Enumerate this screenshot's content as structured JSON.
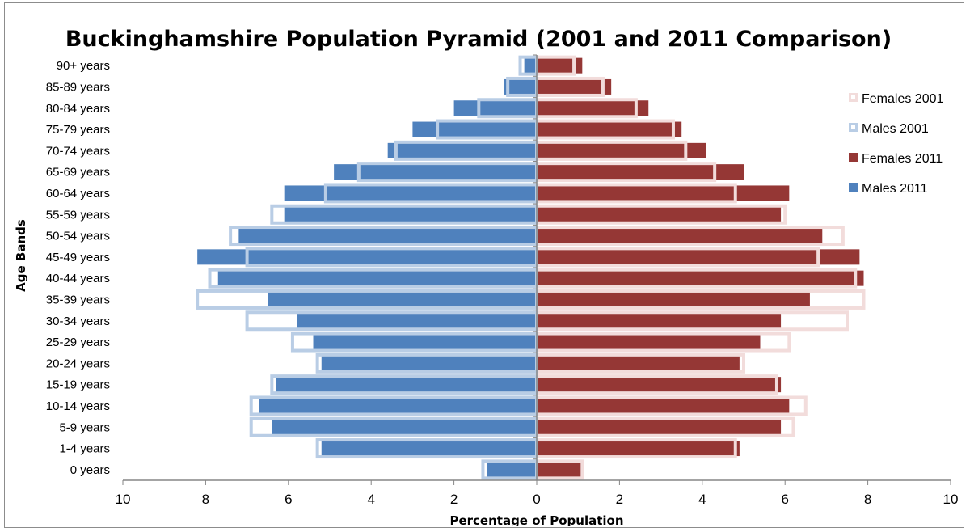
{
  "chart_data": {
    "type": "bar",
    "orientation": "horizontal-pyramid",
    "title": "Buckinghamshire Population Pyramid (2001 and 2011 Comparison)",
    "xlabel": "Percentage of Population",
    "ylabel": "Age Bands",
    "xlim": [
      -10,
      10
    ],
    "x_ticks": [
      -10,
      -8,
      -6,
      -4,
      -2,
      0,
      2,
      4,
      6,
      8,
      10
    ],
    "x_tick_labels": [
      "10",
      "8",
      "6",
      "4",
      "2",
      "0",
      "2",
      "4",
      "6",
      "8",
      "10"
    ],
    "categories": [
      "90+ years",
      "85-89 years",
      "80-84 years",
      "75-79 years",
      "70-74 years",
      "65-69 years",
      "60-64 years",
      "55-59 years",
      "50-54 years",
      "45-49 years",
      "40-44 years",
      "35-39 years",
      "30-34 years",
      "25-29 years",
      "20-24 years",
      "15-19 years",
      "10-14 years",
      "5-9 years",
      "1-4 years",
      "0 years"
    ],
    "grid": false,
    "legend_position": "right",
    "series": [
      {
        "name": "Females 2001",
        "side": "right",
        "style": "outline",
        "color": "#f2dcdb",
        "values": [
          0.9,
          1.6,
          2.4,
          3.3,
          3.6,
          4.3,
          4.8,
          6.0,
          7.4,
          6.8,
          7.7,
          7.9,
          7.5,
          6.1,
          5.0,
          5.8,
          6.5,
          6.2,
          4.8,
          1.1
        ]
      },
      {
        "name": "Males 2001",
        "side": "left",
        "style": "outline",
        "color": "#b9cde5",
        "values": [
          0.4,
          0.7,
          1.4,
          2.4,
          3.4,
          4.3,
          5.1,
          6.4,
          7.4,
          7.0,
          7.9,
          8.2,
          7.0,
          5.9,
          5.3,
          6.4,
          6.9,
          6.9,
          5.3,
          1.3
        ]
      },
      {
        "name": "Females 2011",
        "side": "right",
        "style": "filled",
        "color": "#953735",
        "values": [
          1.1,
          1.8,
          2.7,
          3.5,
          4.1,
          5.0,
          6.1,
          5.9,
          6.9,
          7.8,
          7.9,
          6.6,
          5.9,
          5.4,
          4.9,
          5.9,
          6.1,
          5.9,
          4.9,
          1.1
        ]
      },
      {
        "name": "Males 2011",
        "side": "left",
        "style": "filled",
        "color": "#4f81bd",
        "values": [
          0.3,
          0.8,
          2.0,
          3.0,
          3.6,
          4.9,
          6.1,
          6.1,
          7.2,
          8.2,
          7.7,
          6.5,
          5.8,
          5.4,
          5.2,
          6.3,
          6.7,
          6.4,
          5.2,
          1.2
        ]
      }
    ],
    "legend": [
      {
        "label": "Females 2001",
        "series": 0
      },
      {
        "label": "Males 2001",
        "series": 1
      },
      {
        "label": "Females 2011",
        "series": 2
      },
      {
        "label": "Males 2011",
        "series": 3
      }
    ]
  }
}
